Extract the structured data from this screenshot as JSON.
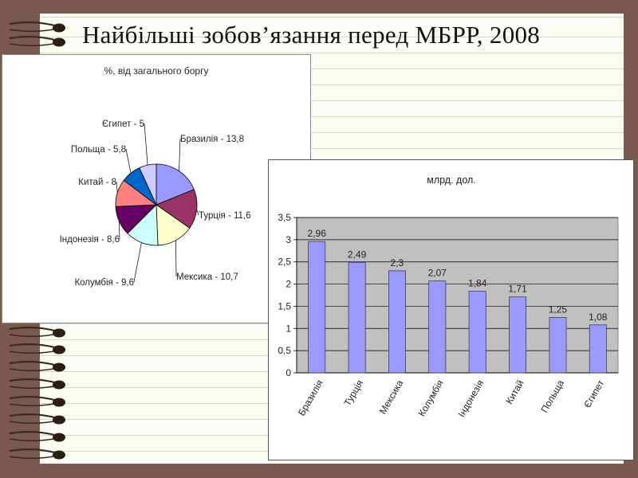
{
  "slide_title": "Найбільші зобов’язання перед МБРР, 2008",
  "chart_data": [
    {
      "type": "pie",
      "title": "%, від загального боргу",
      "categories": [
        "Бразилія",
        "Туреччина",
        "Мексика",
        "Колумбія",
        "Індонезія",
        "Китай",
        "Польща",
        "Єгипет"
      ],
      "slice_labels": [
        "Бразилія - 13,8",
        "Турція - 11,6",
        "Мексика - 10,7",
        "Колумбія - 9,6",
        "Індонезія - 8,6",
        "Китай - 8",
        "Польща - 5,8",
        "Єгипет - 5"
      ],
      "values": [
        13.8,
        11.6,
        10.7,
        9.6,
        8.6,
        8,
        5.8,
        5
      ],
      "colors": [
        "#9999ff",
        "#993366",
        "#ffffcc",
        "#ccffff",
        "#660066",
        "#ff8080",
        "#0066cc",
        "#ccccff"
      ]
    },
    {
      "type": "bar",
      "title": "млрд. дол.",
      "categories": [
        "Бразилія",
        "Турція",
        "Мексика",
        "Колумбія",
        "Індонезія",
        "Китай",
        "Польща",
        "Єгипет"
      ],
      "values": [
        2.96,
        2.49,
        2.3,
        2.07,
        1.84,
        1.71,
        1.25,
        1.08
      ],
      "value_labels": [
        "2,96",
        "2,49",
        "2,3",
        "2,07",
        "1,84",
        "1,71",
        "1,25",
        "1,08"
      ],
      "ylim": [
        0,
        3.5
      ],
      "yticks": [
        0,
        0.5,
        1,
        1.5,
        2,
        2.5,
        3,
        3.5
      ],
      "ytick_labels": [
        "0",
        "0,5",
        "1",
        "1,5",
        "2",
        "2,5",
        "3",
        "3,5"
      ],
      "grid": true,
      "plot_background": "#c0c0c0",
      "bar_color": "#9999ff"
    }
  ]
}
